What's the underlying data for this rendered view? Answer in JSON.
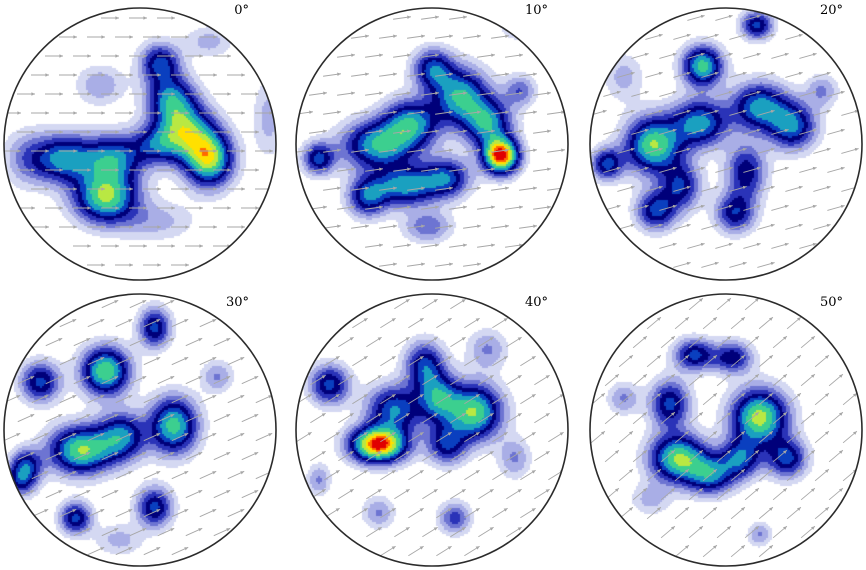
{
  "chart_data": {
    "type": "heatmap",
    "description_of_panels": "pole-figure density plots with direction arrows",
    "colormap": [
      "#ffffff",
      "#d4d8f2",
      "#a9aee6",
      "#6d74d2",
      "#2a33b8",
      "#00007a",
      "#0a3fbf",
      "#1aa0c0",
      "#3ccf8f",
      "#b9e843",
      "#ffe000",
      "#ff6a00",
      "#e00000"
    ],
    "arrow_color": "#a7a7a7",
    "panels": [
      {
        "label": "0°",
        "arrow_angle_deg": 0,
        "blobs": [
          {
            "x": 0.22,
            "y": 0.55,
            "amp": 0.55,
            "sx": 0.08,
            "sy": 0.06
          },
          {
            "x": 0.4,
            "y": 0.55,
            "amp": 0.5,
            "sx": 0.07,
            "sy": 0.06
          },
          {
            "x": 0.37,
            "y": 0.69,
            "amp": 0.7,
            "sx": 0.08,
            "sy": 0.065
          },
          {
            "x": 0.61,
            "y": 0.33,
            "amp": 0.5,
            "sx": 0.06,
            "sy": 0.06
          },
          {
            "x": 0.66,
            "y": 0.45,
            "amp": 0.65,
            "sx": 0.07,
            "sy": 0.07
          },
          {
            "x": 0.75,
            "y": 0.55,
            "amp": 0.75,
            "sx": 0.06,
            "sy": 0.07
          },
          {
            "x": 0.57,
            "y": 0.2,
            "amp": 0.45,
            "sx": 0.05,
            "sy": 0.05
          },
          {
            "x": 0.55,
            "y": 0.5,
            "amp": 0.35,
            "sx": 0.06,
            "sy": 0.05
          },
          {
            "x": 0.35,
            "y": 0.28,
            "amp": 0.18,
            "sx": 0.06,
            "sy": 0.05
          },
          {
            "x": 0.08,
            "y": 0.55,
            "amp": 0.18,
            "sx": 0.06,
            "sy": 0.07
          },
          {
            "x": 0.75,
            "y": 0.12,
            "amp": 0.15,
            "sx": 0.06,
            "sy": 0.04
          },
          {
            "x": 0.97,
            "y": 0.4,
            "amp": 0.15,
            "sx": 0.04,
            "sy": 0.1
          },
          {
            "x": 0.55,
            "y": 0.78,
            "amp": 0.15,
            "sx": 0.1,
            "sy": 0.05
          }
        ]
      },
      {
        "label": "10°",
        "arrow_angle_deg": -8,
        "blobs": [
          {
            "x": 0.3,
            "y": 0.5,
            "amp": 0.6,
            "sx": 0.09,
            "sy": 0.06
          },
          {
            "x": 0.42,
            "y": 0.42,
            "amp": 0.55,
            "sx": 0.07,
            "sy": 0.06
          },
          {
            "x": 0.4,
            "y": 0.65,
            "amp": 0.55,
            "sx": 0.08,
            "sy": 0.05
          },
          {
            "x": 0.55,
            "y": 0.62,
            "amp": 0.45,
            "sx": 0.06,
            "sy": 0.05
          },
          {
            "x": 0.6,
            "y": 0.32,
            "amp": 0.6,
            "sx": 0.07,
            "sy": 0.07
          },
          {
            "x": 0.7,
            "y": 0.42,
            "amp": 0.55,
            "sx": 0.06,
            "sy": 0.06
          },
          {
            "x": 0.75,
            "y": 0.54,
            "amp": 1.0,
            "sx": 0.045,
            "sy": 0.045
          },
          {
            "x": 0.5,
            "y": 0.22,
            "amp": 0.45,
            "sx": 0.05,
            "sy": 0.05
          },
          {
            "x": 0.26,
            "y": 0.69,
            "amp": 0.45,
            "sx": 0.05,
            "sy": 0.05
          },
          {
            "x": 0.08,
            "y": 0.55,
            "amp": 0.45,
            "sx": 0.04,
            "sy": 0.04
          },
          {
            "x": 0.82,
            "y": 0.06,
            "amp": 0.3,
            "sx": 0.04,
            "sy": 0.03
          },
          {
            "x": 0.82,
            "y": 0.3,
            "amp": 0.25,
            "sx": 0.04,
            "sy": 0.04
          },
          {
            "x": 0.48,
            "y": 0.8,
            "amp": 0.25,
            "sx": 0.06,
            "sy": 0.04
          }
        ]
      },
      {
        "label": "20°",
        "arrow_angle_deg": -16,
        "blobs": [
          {
            "x": 0.23,
            "y": 0.5,
            "amp": 0.7,
            "sx": 0.07,
            "sy": 0.07
          },
          {
            "x": 0.4,
            "y": 0.42,
            "amp": 0.55,
            "sx": 0.07,
            "sy": 0.06
          },
          {
            "x": 0.41,
            "y": 0.21,
            "amp": 0.65,
            "sx": 0.05,
            "sy": 0.05
          },
          {
            "x": 0.62,
            "y": 0.36,
            "amp": 0.55,
            "sx": 0.07,
            "sy": 0.06
          },
          {
            "x": 0.74,
            "y": 0.43,
            "amp": 0.5,
            "sx": 0.06,
            "sy": 0.06
          },
          {
            "x": 0.33,
            "y": 0.65,
            "amp": 0.4,
            "sx": 0.05,
            "sy": 0.06
          },
          {
            "x": 0.57,
            "y": 0.6,
            "amp": 0.4,
            "sx": 0.05,
            "sy": 0.07
          },
          {
            "x": 0.24,
            "y": 0.74,
            "amp": 0.45,
            "sx": 0.05,
            "sy": 0.05
          },
          {
            "x": 0.53,
            "y": 0.75,
            "amp": 0.4,
            "sx": 0.05,
            "sy": 0.05
          },
          {
            "x": 0.06,
            "y": 0.57,
            "amp": 0.45,
            "sx": 0.04,
            "sy": 0.04
          },
          {
            "x": 0.61,
            "y": 0.06,
            "amp": 0.45,
            "sx": 0.04,
            "sy": 0.035
          },
          {
            "x": 0.85,
            "y": 0.3,
            "amp": 0.2,
            "sx": 0.04,
            "sy": 0.04
          },
          {
            "x": 0.12,
            "y": 0.25,
            "amp": 0.15,
            "sx": 0.05,
            "sy": 0.06
          }
        ]
      },
      {
        "label": "30°",
        "arrow_angle_deg": -24,
        "blobs": [
          {
            "x": 0.37,
            "y": 0.28,
            "amp": 0.7,
            "sx": 0.06,
            "sy": 0.06
          },
          {
            "x": 0.28,
            "y": 0.57,
            "amp": 0.7,
            "sx": 0.08,
            "sy": 0.06
          },
          {
            "x": 0.43,
            "y": 0.52,
            "amp": 0.5,
            "sx": 0.06,
            "sy": 0.06
          },
          {
            "x": 0.62,
            "y": 0.48,
            "amp": 0.65,
            "sx": 0.06,
            "sy": 0.07
          },
          {
            "x": 0.55,
            "y": 0.12,
            "amp": 0.45,
            "sx": 0.04,
            "sy": 0.05
          },
          {
            "x": 0.13,
            "y": 0.32,
            "amp": 0.45,
            "sx": 0.05,
            "sy": 0.05
          },
          {
            "x": 0.08,
            "y": 0.62,
            "amp": 0.35,
            "sx": 0.04,
            "sy": 0.04
          },
          {
            "x": 0.26,
            "y": 0.82,
            "amp": 0.45,
            "sx": 0.04,
            "sy": 0.04
          },
          {
            "x": 0.55,
            "y": 0.78,
            "amp": 0.45,
            "sx": 0.045,
            "sy": 0.05
          },
          {
            "x": 0.06,
            "y": 0.68,
            "amp": 0.4,
            "sx": 0.04,
            "sy": 0.04
          },
          {
            "x": 0.78,
            "y": 0.3,
            "amp": 0.2,
            "sx": 0.04,
            "sy": 0.04
          },
          {
            "x": 0.42,
            "y": 0.9,
            "amp": 0.15,
            "sx": 0.06,
            "sy": 0.04
          }
        ]
      },
      {
        "label": "40°",
        "arrow_angle_deg": -32,
        "blobs": [
          {
            "x": 0.3,
            "y": 0.55,
            "amp": 1.0,
            "sx": 0.07,
            "sy": 0.045
          },
          {
            "x": 0.36,
            "y": 0.42,
            "amp": 0.5,
            "sx": 0.07,
            "sy": 0.06
          },
          {
            "x": 0.47,
            "y": 0.26,
            "amp": 0.45,
            "sx": 0.05,
            "sy": 0.06
          },
          {
            "x": 0.52,
            "y": 0.38,
            "amp": 0.5,
            "sx": 0.05,
            "sy": 0.06
          },
          {
            "x": 0.65,
            "y": 0.43,
            "amp": 0.7,
            "sx": 0.07,
            "sy": 0.07
          },
          {
            "x": 0.55,
            "y": 0.55,
            "amp": 0.4,
            "sx": 0.05,
            "sy": 0.05
          },
          {
            "x": 0.12,
            "y": 0.33,
            "amp": 0.45,
            "sx": 0.05,
            "sy": 0.05
          },
          {
            "x": 0.7,
            "y": 0.2,
            "amp": 0.2,
            "sx": 0.05,
            "sy": 0.05
          },
          {
            "x": 0.3,
            "y": 0.8,
            "amp": 0.2,
            "sx": 0.04,
            "sy": 0.04
          },
          {
            "x": 0.58,
            "y": 0.82,
            "amp": 0.3,
            "sx": 0.04,
            "sy": 0.04
          },
          {
            "x": 0.08,
            "y": 0.68,
            "amp": 0.2,
            "sx": 0.03,
            "sy": 0.04
          },
          {
            "x": 0.8,
            "y": 0.6,
            "amp": 0.2,
            "sx": 0.04,
            "sy": 0.05
          }
        ]
      },
      {
        "label": "50°",
        "arrow_angle_deg": -40,
        "blobs": [
          {
            "x": 0.32,
            "y": 0.6,
            "amp": 0.7,
            "sx": 0.07,
            "sy": 0.06
          },
          {
            "x": 0.44,
            "y": 0.66,
            "amp": 0.5,
            "sx": 0.06,
            "sy": 0.05
          },
          {
            "x": 0.62,
            "y": 0.45,
            "amp": 0.75,
            "sx": 0.07,
            "sy": 0.07
          },
          {
            "x": 0.55,
            "y": 0.6,
            "amp": 0.45,
            "sx": 0.05,
            "sy": 0.05
          },
          {
            "x": 0.29,
            "y": 0.4,
            "amp": 0.45,
            "sx": 0.05,
            "sy": 0.06
          },
          {
            "x": 0.38,
            "y": 0.22,
            "amp": 0.45,
            "sx": 0.05,
            "sy": 0.04
          },
          {
            "x": 0.52,
            "y": 0.23,
            "amp": 0.4,
            "sx": 0.05,
            "sy": 0.04
          },
          {
            "x": 0.72,
            "y": 0.6,
            "amp": 0.45,
            "sx": 0.05,
            "sy": 0.05
          },
          {
            "x": 0.12,
            "y": 0.38,
            "amp": 0.2,
            "sx": 0.04,
            "sy": 0.04
          },
          {
            "x": 0.62,
            "y": 0.88,
            "amp": 0.2,
            "sx": 0.03,
            "sy": 0.03
          },
          {
            "x": 0.22,
            "y": 0.75,
            "amp": 0.15,
            "sx": 0.05,
            "sy": 0.04
          }
        ]
      }
    ]
  }
}
